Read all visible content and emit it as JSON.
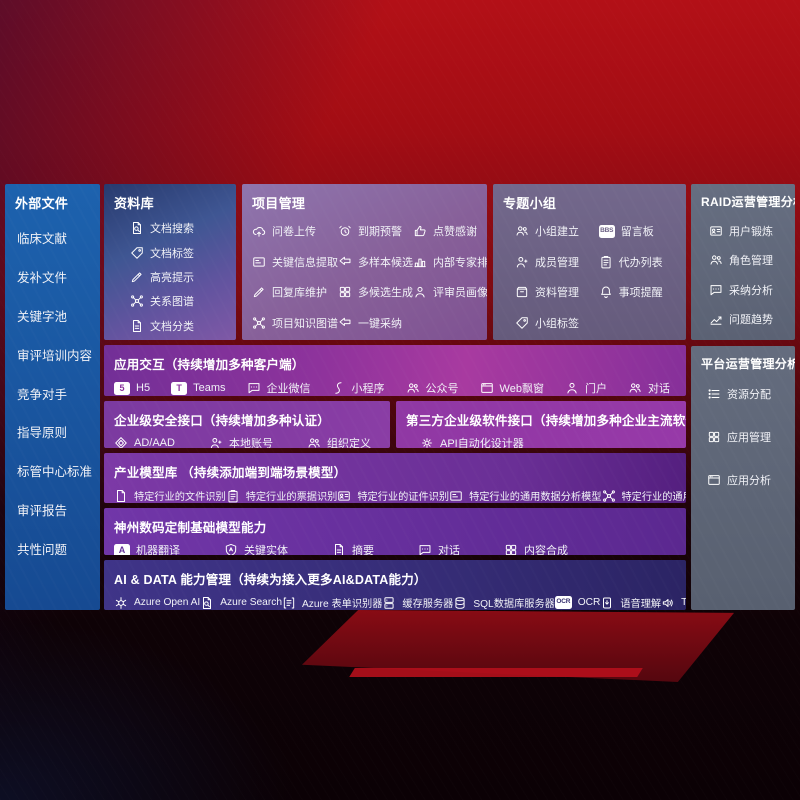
{
  "colors": {
    "background_red": "#a30d14",
    "sidebar_blue": "#1b5aa6",
    "panel_purple": "#7c39a3",
    "panel_magenta": "#a83aa0",
    "panel_slate": "#616a7c",
    "panel_indigo": "#37306f",
    "text": "#ffffff"
  },
  "sidebar": {
    "title": "外部文件",
    "items": [
      {
        "name": "clinical-literature",
        "label": "临床文献"
      },
      {
        "name": "supplement-files",
        "label": "发补文件"
      },
      {
        "name": "keyword-pool",
        "label": "关键字池"
      },
      {
        "name": "review-training-content",
        "label": "审评培训内容"
      },
      {
        "name": "competitors",
        "label": "竞争对手"
      },
      {
        "name": "guiding-principles",
        "label": "指导原则"
      },
      {
        "name": "cde-standards",
        "label": "标管中心标准"
      },
      {
        "name": "review-reports",
        "label": "审评报告"
      },
      {
        "name": "common-issues",
        "label": "共性问题"
      }
    ]
  },
  "panels": {
    "knowledge_base": {
      "title": "资料库",
      "items": [
        {
          "name": "doc-search",
          "icon": "doc-search",
          "label": "文档搜索"
        },
        {
          "name": "doc-tags",
          "icon": "tag",
          "label": "文档标签"
        },
        {
          "name": "highlight-tips",
          "icon": "pen",
          "label": "高亮提示"
        },
        {
          "name": "relation-graph",
          "icon": "graph",
          "label": "关系图谱"
        },
        {
          "name": "doc-classify",
          "icon": "doc-lines",
          "label": "文档分类"
        }
      ]
    },
    "project_mgmt": {
      "title": "项目管理",
      "items": [
        {
          "name": "questionnaire-upload",
          "icon": "cloud-up",
          "label": "问卷上传"
        },
        {
          "name": "expiry-alert",
          "icon": "alarm",
          "label": "到期预警"
        },
        {
          "name": "like-thanks",
          "icon": "thumb",
          "label": "点赞感谢"
        },
        {
          "name": "key-info-extract",
          "icon": "card",
          "label": "关键信息提取"
        },
        {
          "name": "multi-sample-candidate",
          "icon": "reply",
          "label": "多样本候选"
        },
        {
          "name": "internal-expert-ranking",
          "icon": "rank",
          "label": "内部专家排名"
        },
        {
          "name": "reply-library-maintain",
          "icon": "pen",
          "label": "回复库维护"
        },
        {
          "name": "multi-candidate-generate",
          "icon": "grid",
          "label": "多候选生成"
        },
        {
          "name": "reviewer-profile",
          "icon": "person",
          "label": "评审员画像"
        },
        {
          "name": "project-knowledge-graph",
          "icon": "graph",
          "label": "项目知识图谱"
        },
        {
          "name": "one-click-adopt",
          "icon": "reply",
          "label": "一键采纳"
        }
      ]
    },
    "topic_groups": {
      "title": "专题小组",
      "items": [
        {
          "name": "group-create",
          "icon": "people",
          "label": "小组建立"
        },
        {
          "name": "message-board",
          "icon": "text:BBS",
          "label": "留言板"
        },
        {
          "name": "member-mgmt",
          "icon": "person-add",
          "label": "成员管理"
        },
        {
          "name": "todo-list",
          "icon": "clipboard",
          "label": "代办列表"
        },
        {
          "name": "material-mgmt",
          "icon": "box",
          "label": "资料管理"
        },
        {
          "name": "matter-reminder",
          "icon": "bell",
          "label": "事项提醒"
        },
        {
          "name": "group-tags",
          "icon": "tag",
          "label": "小组标签"
        }
      ]
    },
    "raid_analysis": {
      "title": "RAID运营管理分析",
      "items": [
        {
          "name": "user-training",
          "icon": "id-card",
          "label": "用户锻炼"
        },
        {
          "name": "role-mgmt",
          "icon": "people",
          "label": "角色管理"
        },
        {
          "name": "adoption-analysis",
          "icon": "chat",
          "label": "采纳分析"
        },
        {
          "name": "issue-trend",
          "icon": "trend",
          "label": "问题趋势"
        }
      ]
    },
    "platform_analysis": {
      "title": "平台运营管理分析",
      "items": [
        {
          "name": "resource-allocation",
          "icon": "list",
          "label": "资源分配"
        },
        {
          "name": "app-mgmt",
          "icon": "grid",
          "label": "应用管理"
        },
        {
          "name": "app-analysis",
          "icon": "window",
          "label": "应用分析"
        }
      ]
    },
    "app_interaction": {
      "title": "应用交互（持续增加多种客户端）",
      "items": [
        {
          "name": "h5",
          "icon": "text:5",
          "label": "H5"
        },
        {
          "name": "teams",
          "icon": "text:T",
          "label": "Teams"
        },
        {
          "name": "wecom",
          "icon": "chat",
          "label": "企业微信"
        },
        {
          "name": "mini-program",
          "icon": "scurve",
          "label": "小程序"
        },
        {
          "name": "official-account",
          "icon": "people",
          "label": "公众号"
        },
        {
          "name": "web-popup",
          "icon": "window",
          "label": "Web飘窗"
        },
        {
          "name": "portal",
          "icon": "person",
          "label": "门户"
        },
        {
          "name": "dialog",
          "icon": "people",
          "label": "对话"
        }
      ]
    },
    "security_api": {
      "title": "企业级安全接口（持续增加多种认证）",
      "items": [
        {
          "name": "ad-aad",
          "icon": "ad-shield",
          "label": "AD/AAD"
        },
        {
          "name": "local-account",
          "icon": "person-add",
          "label": "本地账号"
        },
        {
          "name": "org-define",
          "icon": "people",
          "label": "组织定义"
        }
      ]
    },
    "third_party_api": {
      "title": "第三方企业级软件接口（持续增加多种企业主流软件接口）",
      "items": [
        {
          "name": "api-auto-designer",
          "icon": "gear",
          "label": "API自动化设计器"
        }
      ]
    },
    "industry_models": {
      "title": "产业模型库 （持续添加端到端场景模型）",
      "items": [
        {
          "name": "industry-file-recognition",
          "icon": "doc",
          "label": "特定行业的文件识别"
        },
        {
          "name": "industry-invoice-recognition",
          "icon": "clipboard",
          "label": "特定行业的票据识别"
        },
        {
          "name": "industry-id-recognition",
          "icon": "id-card",
          "label": "特定行业的证件识别"
        },
        {
          "name": "industry-data-analysis-model",
          "icon": "card",
          "label": "特定行业的通用数据分析模型"
        },
        {
          "name": "industry-knowledge-graph-model",
          "icon": "graph",
          "label": "特定行业的通用知识图谱模型"
        }
      ]
    },
    "base_models": {
      "title": "神州数码定制基础模型能力",
      "items": [
        {
          "name": "machine-translation",
          "icon": "text:A",
          "label": "机器翻译"
        },
        {
          "name": "key-entity",
          "icon": "shield",
          "label": "关键实体"
        },
        {
          "name": "summary",
          "icon": "doc-lines",
          "label": "摘要"
        },
        {
          "name": "dialogue",
          "icon": "chat",
          "label": "对话"
        },
        {
          "name": "content-synthesis",
          "icon": "grid",
          "label": "内容合成"
        }
      ]
    },
    "ai_data": {
      "title": "AI & DATA 能力管理（持续为接入更多AI&DATA能力）",
      "items": [
        {
          "name": "azure-open-ai",
          "icon": "openai",
          "label": "Azure Open AI"
        },
        {
          "name": "azure-search",
          "icon": "doc-search",
          "label": "Azure Search"
        },
        {
          "name": "azure-form-recognizer",
          "icon": "form",
          "label": "Azure 表单识别器"
        },
        {
          "name": "cache-server",
          "icon": "server",
          "label": "缓存服务器"
        },
        {
          "name": "sql-db-server",
          "icon": "db",
          "label": "SQL数据库服务器"
        },
        {
          "name": "ocr",
          "icon": "text:OCR",
          "label": "OCR"
        },
        {
          "name": "speech-understanding",
          "icon": "speech",
          "label": "语音理解"
        },
        {
          "name": "tts",
          "icon": "speaker",
          "label": "TTS"
        }
      ]
    }
  }
}
